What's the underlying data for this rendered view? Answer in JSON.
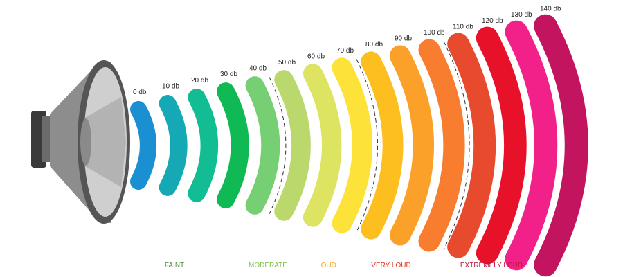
{
  "levels": [
    {
      "label": "0 db",
      "color": "#1a8fd1"
    },
    {
      "label": "10 db",
      "color": "#14a9b5"
    },
    {
      "label": "20 db",
      "color": "#12bd94"
    },
    {
      "label": "30 db",
      "color": "#0fb954"
    },
    {
      "label": "40 db",
      "color": "#76cf72"
    },
    {
      "label": "50 db",
      "color": "#bad86c"
    },
    {
      "label": "60 db",
      "color": "#dde462"
    },
    {
      "label": "70 db",
      "color": "#fde23a"
    },
    {
      "label": "80 db",
      "color": "#fcbf1f"
    },
    {
      "label": "90 db",
      "color": "#fba12a"
    },
    {
      "label": "100 db",
      "color": "#f87d2f"
    },
    {
      "label": "110 db",
      "color": "#e84a2d"
    },
    {
      "label": "120 db",
      "color": "#e8112a"
    },
    {
      "label": "130 db",
      "color": "#f2218a"
    },
    {
      "label": "140 db",
      "color": "#c2145f"
    }
  ],
  "categories": [
    {
      "label": "FAINT",
      "color": "#4f8a3a"
    },
    {
      "label": "MODERATE",
      "color": "#7fbf4a"
    },
    {
      "label": "LOUD",
      "color": "#f5a623"
    },
    {
      "label": "VERY LOUD",
      "color": "#e8341c"
    },
    {
      "label": "EXTREMELY LOUD",
      "color": "#c0143c"
    }
  ]
}
